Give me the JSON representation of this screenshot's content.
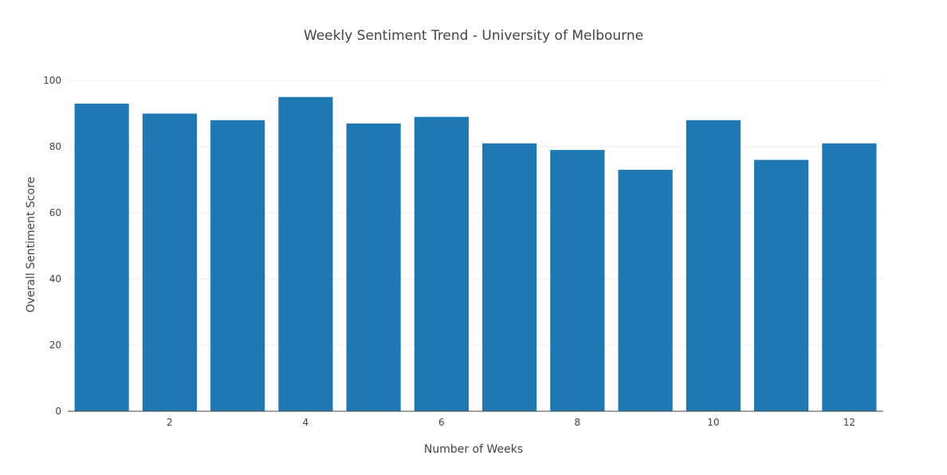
{
  "chart_data": {
    "type": "bar",
    "title": "Weekly Sentiment Trend - University of Melbourne",
    "xlabel": "Number of Weeks",
    "ylabel": "Overall Sentiment Score",
    "x": [
      1,
      2,
      3,
      4,
      5,
      6,
      7,
      8,
      9,
      10,
      11,
      12
    ],
    "values": [
      93,
      90,
      88,
      95,
      87,
      89,
      81,
      79,
      73,
      88,
      76,
      81
    ],
    "xlim": [
      0.5,
      12.5
    ],
    "ylim": [
      0,
      100
    ],
    "x_ticks": [
      2,
      4,
      6,
      8,
      10,
      12
    ],
    "y_ticks": [
      0,
      20,
      40,
      60,
      80,
      100
    ],
    "grid": true,
    "legend": false,
    "colors": {
      "bar": "#1f77b4",
      "grid": "#eeeeee",
      "axis": "#444444",
      "text": "#444444"
    }
  }
}
